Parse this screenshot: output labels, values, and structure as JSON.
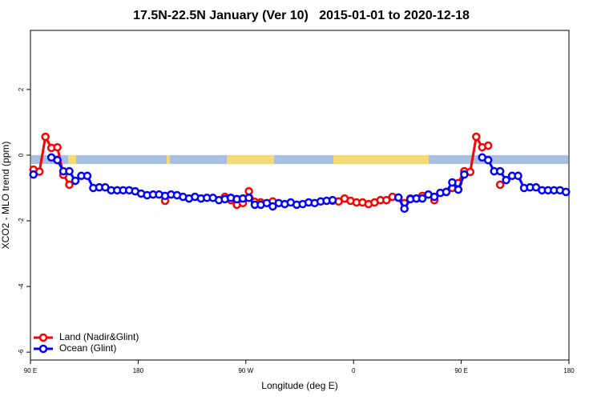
{
  "chart_data": {
    "type": "line",
    "title": "17.5N-22.5N January (Ver 10)   2015-01-01 to 2020-12-18",
    "xlabel": "Longitude (deg E)",
    "ylabel": "XCO2 - MLO trend (ppm)",
    "x": [
      92.5,
      97.5,
      102.5,
      107.5,
      112.5,
      117.5,
      122.5,
      127.5,
      132.5,
      137.5,
      142.5,
      147.5,
      152.5,
      157.5,
      162.5,
      167.5,
      172.5,
      177.5,
      182.5,
      187.5,
      192.5,
      197.5,
      202.5,
      207.5,
      212.5,
      217.5,
      222.5,
      227.5,
      232.5,
      237.5,
      242.5,
      247.5,
      252.5,
      257.5,
      262.5,
      267.5,
      272.5,
      277.5,
      282.5,
      287.5,
      292.5,
      297.5,
      302.5,
      307.5,
      312.5,
      317.5,
      322.5,
      327.5,
      332.5,
      337.5,
      342.5,
      347.5,
      352.5,
      357.5,
      362.5,
      367.5,
      372.5,
      377.5,
      382.5,
      387.5,
      392.5,
      397.5,
      402.5,
      407.5,
      412.5,
      417.5,
      422.5,
      427.5,
      432.5,
      437.5,
      442.5,
      447.5,
      452.5,
      457.5,
      462.5,
      467.5,
      472.5,
      477.5,
      482.5,
      487.5,
      492.5,
      497.5,
      502.5,
      507.5,
      512.5,
      517.5,
      522.5,
      527.5,
      532.5,
      537.5
    ],
    "series": [
      {
        "name": "Land (Nadir&Glint)",
        "color": "#ff0000",
        "values": [
          -0.44,
          -0.5,
          0.56,
          0.22,
          0.24,
          -0.6,
          -0.9,
          null,
          null,
          null,
          null,
          null,
          null,
          null,
          null,
          null,
          null,
          null,
          null,
          null,
          null,
          null,
          -1.39,
          null,
          null,
          null,
          null,
          null,
          null,
          null,
          null,
          null,
          -1.27,
          -1.37,
          -1.51,
          -1.46,
          -1.1,
          -1.42,
          -1.44,
          null,
          -1.41,
          null,
          null,
          null,
          null,
          null,
          null,
          null,
          null,
          null,
          -1.39,
          -1.41,
          -1.32,
          -1.39,
          -1.44,
          -1.44,
          -1.49,
          -1.44,
          -1.37,
          -1.37,
          -1.27,
          -1.3,
          -1.46,
          -1.32,
          -1.32,
          -1.24,
          -1.2,
          -1.37,
          -1.15,
          -1.12,
          -1.0,
          -0.85,
          -0.49,
          -0.51,
          0.56,
          0.24,
          0.29,
          null,
          -0.9,
          null,
          null,
          null,
          null,
          null,
          null,
          null,
          null,
          null,
          null,
          null
        ]
      },
      {
        "name": "Ocean (Glint)",
        "color": "#0000ff",
        "values": [
          -0.59,
          null,
          null,
          -0.07,
          -0.15,
          -0.49,
          -0.49,
          -0.78,
          -0.63,
          -0.63,
          -1.0,
          -0.98,
          -0.98,
          -1.07,
          -1.07,
          -1.07,
          -1.07,
          -1.1,
          -1.17,
          -1.22,
          -1.2,
          -1.2,
          -1.24,
          -1.2,
          -1.22,
          -1.27,
          -1.32,
          -1.27,
          -1.32,
          -1.3,
          -1.3,
          -1.37,
          -1.34,
          -1.3,
          -1.34,
          -1.32,
          -1.3,
          -1.51,
          -1.51,
          -1.46,
          -1.56,
          -1.46,
          -1.49,
          -1.44,
          -1.51,
          -1.49,
          -1.44,
          -1.46,
          -1.41,
          -1.39,
          -1.37,
          null,
          null,
          null,
          null,
          null,
          null,
          null,
          null,
          null,
          null,
          -1.29,
          -1.63,
          -1.34,
          -1.32,
          -1.32,
          -1.2,
          -1.27,
          -1.15,
          -1.12,
          -0.83,
          -1.05,
          -0.59,
          null,
          null,
          -0.07,
          -0.15,
          -0.49,
          -0.49,
          -0.76,
          -0.63,
          -0.63,
          -1.0,
          -0.98,
          -0.98,
          -1.07,
          -1.07,
          -1.07,
          -1.07,
          -1.12
        ]
      }
    ],
    "xlim": [
      90,
      540
    ],
    "xticks": [
      {
        "value": 90,
        "label": "90 E"
      },
      180,
      {
        "value": 270,
        "label": "90 W"
      },
      {
        "value": 360,
        "label": "0"
      },
      {
        "value": 450,
        "label": "90 E"
      },
      {
        "value": 540,
        "label": "180"
      }
    ],
    "ylim": [
      -6.24,
      3.8
    ],
    "yticks": [
      -6,
      -4,
      -2,
      0,
      2
    ],
    "legend": "bottom-left"
  }
}
